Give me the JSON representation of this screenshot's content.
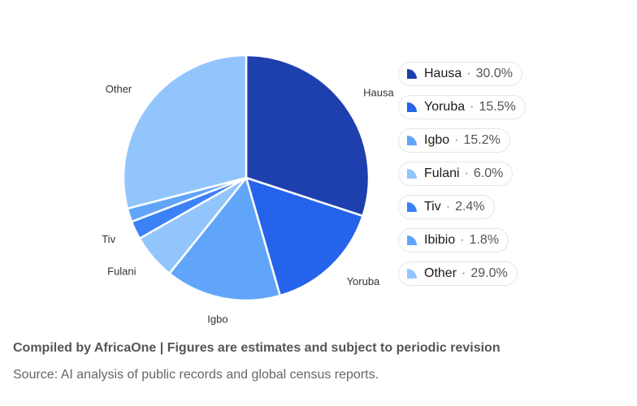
{
  "chart_data": {
    "type": "pie",
    "categories": [
      "Hausa",
      "Yoruba",
      "Igbo",
      "Fulani",
      "Tiv",
      "Ibibio",
      "Other"
    ],
    "values": [
      30.0,
      15.5,
      15.2,
      6.0,
      2.4,
      1.8,
      29.0
    ],
    "value_labels": [
      "30.0%",
      "15.5%",
      "15.2%",
      "6.0%",
      "2.4%",
      "1.8%",
      "29.0%"
    ],
    "slice_labels": [
      "Hausa",
      "Yoruba",
      "Igbo",
      "Fulani",
      "Tiv",
      "",
      "Other"
    ],
    "colors": [
      "#1e40af",
      "#2563eb",
      "#60a5fa",
      "#93c5fd",
      "#3b82f6",
      "#60a5fa",
      "#93c5fd"
    ],
    "legend_placement": "right",
    "title": "",
    "start_angle_deg": 0,
    "direction": "clockwise"
  },
  "legend_separator": "·",
  "footer": {
    "compiled": "Compiled by AfricaOne | Figures are estimates and subject to periodic revision",
    "source": "Source: AI analysis of public records and global census reports."
  }
}
